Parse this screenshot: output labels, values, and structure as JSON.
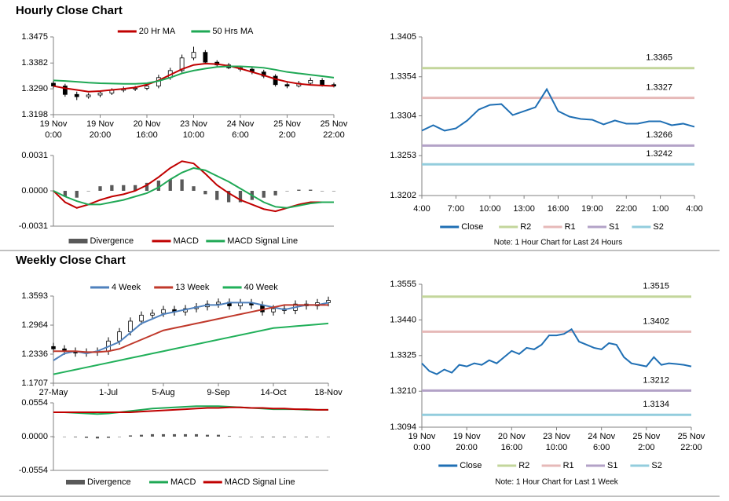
{
  "sections": [
    {
      "title": "Hourly Close Chart"
    },
    {
      "title": "Weekly Close Chart"
    }
  ],
  "chart_data": [
    {
      "type": "candlestick",
      "legend": "top",
      "xlim": [
        0,
        24
      ],
      "ylim": [
        1.3198,
        1.3475
      ],
      "yticks": [
        1.3198,
        {
          "value": 1.329,
          "label": "1.3290"
        },
        1.3382,
        1.3475
      ],
      "xticks": [
        {
          "value": 0,
          "label": "19 Nov\n0:00"
        },
        {
          "value": 4,
          "label": "19 Nov\n20:00"
        },
        {
          "value": 8,
          "label": "20 Nov\n16:00"
        },
        {
          "value": 12,
          "label": "23 Nov\n10:00"
        },
        {
          "value": 16,
          "label": "24 Nov\n6:00"
        },
        {
          "value": 20,
          "label": "25 Nov\n2:00"
        },
        {
          "value": 24,
          "label": "25 Nov\n22:00"
        }
      ],
      "candles": {
        "open": [
          1.331,
          1.33,
          1.327,
          1.3262,
          1.3268,
          1.3275,
          1.3285,
          1.329,
          1.3292,
          1.33,
          1.333,
          1.3355,
          1.34,
          1.342,
          1.3385,
          1.3375,
          1.3365,
          1.336,
          1.335,
          1.3335,
          1.3305,
          1.33,
          1.331,
          1.332,
          1.3305
        ],
        "high": [
          1.3318,
          1.3308,
          1.328,
          1.3275,
          1.3282,
          1.3292,
          1.3298,
          1.33,
          1.3308,
          1.334,
          1.3365,
          1.3412,
          1.344,
          1.3428,
          1.3392,
          1.3382,
          1.3372,
          1.3368,
          1.3358,
          1.3342,
          1.3312,
          1.3318,
          1.333,
          1.3328,
          1.3312
        ],
        "low": [
          1.3292,
          1.3262,
          1.325,
          1.3255,
          1.326,
          1.3268,
          1.3278,
          1.3282,
          1.3285,
          1.3292,
          1.3322,
          1.3348,
          1.3392,
          1.3378,
          1.3368,
          1.336,
          1.3352,
          1.3342,
          1.3328,
          1.3298,
          1.3292,
          1.3295,
          1.3302,
          1.3298,
          1.3295
        ],
        "close": [
          1.33,
          1.327,
          1.3262,
          1.3268,
          1.3275,
          1.3285,
          1.329,
          1.3292,
          1.33,
          1.333,
          1.3355,
          1.34,
          1.342,
          1.3385,
          1.3375,
          1.3365,
          1.336,
          1.335,
          1.3335,
          1.3305,
          1.33,
          1.331,
          1.332,
          1.3305,
          1.33
        ]
      },
      "series": [
        {
          "name": "20 Hr MA",
          "color": "#c00000",
          "values": [
            1.33,
            1.3292,
            1.3286,
            1.328,
            1.3282,
            1.3286,
            1.329,
            1.3295,
            1.3305,
            1.332,
            1.334,
            1.336,
            1.3375,
            1.338,
            1.3378,
            1.3372,
            1.3362,
            1.335,
            1.3338,
            1.3325,
            1.3315,
            1.3308,
            1.3304,
            1.3302,
            1.33
          ]
        },
        {
          "name": "50 Hrs MA",
          "color": "#1fa855",
          "values": [
            1.332,
            1.3318,
            1.3315,
            1.3312,
            1.331,
            1.3309,
            1.3308,
            1.3308,
            1.331,
            1.3318,
            1.333,
            1.3345,
            1.3355,
            1.3362,
            1.3368,
            1.337,
            1.337,
            1.3368,
            1.3365,
            1.3358,
            1.335,
            1.3345,
            1.334,
            1.3335,
            1.333
          ]
        }
      ]
    },
    {
      "type": "combo",
      "legend": "bottom",
      "xlim": [
        0,
        24
      ],
      "ylim": [
        -0.0031,
        0.0031
      ],
      "yticks": [
        -0.0031,
        {
          "value": 0,
          "label": "0.0000"
        },
        0.0031
      ],
      "series": [
        {
          "name": "Divergence",
          "type": "bar",
          "color": "#595959",
          "values": [
            0,
            -0.0005,
            -0.0006,
            0,
            0.0004,
            0.0005,
            0.0005,
            0.0005,
            0.0007,
            0.0009,
            0.001,
            0.001,
            0.0004,
            -0.0003,
            -0.0008,
            -0.001,
            -0.001,
            -0.0008,
            -0.0006,
            -0.0004,
            0,
            0.0001,
            0.0001,
            0,
            0
          ]
        },
        {
          "name": "MACD",
          "type": "line",
          "color": "#c00000",
          "values": [
            0,
            -0.001,
            -0.0015,
            -0.0012,
            -0.0008,
            -0.0005,
            -0.0003,
            0,
            0.0005,
            0.0012,
            0.002,
            0.0026,
            0.0024,
            0.0015,
            0.0005,
            -0.0002,
            -0.0008,
            -0.0012,
            -0.0016,
            -0.0018,
            -0.0015,
            -0.0012,
            -0.001,
            -0.001,
            -0.001
          ]
        },
        {
          "name": "MACD Signal Line",
          "type": "line",
          "color": "#1fa855",
          "values": [
            0,
            -0.0005,
            -0.0009,
            -0.0012,
            -0.0012,
            -0.001,
            -0.0008,
            -0.0005,
            -0.0002,
            0.0003,
            0.001,
            0.0016,
            0.002,
            0.0018,
            0.0013,
            0.0008,
            0.0002,
            -0.0004,
            -0.001,
            -0.0014,
            -0.0015,
            -0.0013,
            -0.0011,
            -0.001,
            -0.001
          ]
        }
      ]
    },
    {
      "type": "line",
      "legend": "bottom",
      "note": "Note: 1 Hour Chart for Last 24 Hours",
      "ylim": [
        1.3202,
        1.3405
      ],
      "yticks": [
        1.3202,
        1.3253,
        1.3304,
        1.3354,
        1.3405
      ],
      "categories": [
        "4:00",
        null,
        null,
        "7:00",
        null,
        null,
        "10:00",
        null,
        null,
        "13:00",
        null,
        null,
        "16:00",
        null,
        null,
        "19:00",
        null,
        null,
        "22:00",
        null,
        null,
        "1:00",
        null,
        null,
        "4:00"
      ],
      "series": [
        {
          "name": "Close",
          "color": "#1f6fb4",
          "values": [
            1.3285,
            1.3292,
            1.3285,
            1.3288,
            1.3298,
            1.3312,
            1.3318,
            1.3319,
            1.3305,
            1.331,
            1.3315,
            1.3338,
            1.331,
            1.3303,
            1.33,
            1.3299,
            1.3293,
            1.3298,
            1.3294,
            1.3294,
            1.3297,
            1.3297,
            1.3292,
            1.3294,
            1.329
          ]
        }
      ],
      "levels": [
        {
          "name": "R2",
          "value": 1.3365,
          "color": "#c3d69b"
        },
        {
          "name": "R1",
          "value": 1.3327,
          "color": "#e6b9b8"
        },
        {
          "name": "S1",
          "value": 1.3266,
          "color": "#b3a2c7"
        },
        {
          "name": "S2",
          "value": 1.3242,
          "color": "#93cddd"
        }
      ]
    },
    {
      "type": "candlestick",
      "legend": "top",
      "xlim": [
        0,
        25
      ],
      "ylim": [
        1.1707,
        1.3593
      ],
      "yticks": [
        1.1707,
        1.2336,
        1.2964,
        1.3593
      ],
      "xticks": [
        {
          "value": 0,
          "label": "27-May"
        },
        {
          "value": 5,
          "label": "1-Jul"
        },
        {
          "value": 10,
          "label": "5-Aug"
        },
        {
          "value": 15,
          "label": "9-Sep"
        },
        {
          "value": 20,
          "label": "14-Oct"
        },
        {
          "value": 25,
          "label": "18-Nov"
        }
      ],
      "candles": {
        "open": [
          1.25,
          1.245,
          1.24,
          1.236,
          1.238,
          1.24,
          1.262,
          1.282,
          1.305,
          1.318,
          1.322,
          1.33,
          1.325,
          1.332,
          1.336,
          1.342,
          1.346,
          1.338,
          1.345,
          1.34,
          1.325,
          1.332,
          1.328,
          1.342,
          1.338,
          1.345
        ],
        "high": [
          1.258,
          1.253,
          1.248,
          1.246,
          1.248,
          1.27,
          1.29,
          1.313,
          1.326,
          1.33,
          1.338,
          1.338,
          1.34,
          1.344,
          1.35,
          1.354,
          1.354,
          1.353,
          1.353,
          1.348,
          1.34,
          1.34,
          1.35,
          1.35,
          1.353,
          1.358
        ],
        "low": [
          1.237,
          1.232,
          1.228,
          1.228,
          1.23,
          1.232,
          1.254,
          1.274,
          1.297,
          1.31,
          1.314,
          1.317,
          1.317,
          1.324,
          1.328,
          1.334,
          1.33,
          1.33,
          1.332,
          1.317,
          1.317,
          1.32,
          1.32,
          1.33,
          1.33,
          1.337
        ],
        "close": [
          1.245,
          1.24,
          1.236,
          1.238,
          1.24,
          1.262,
          1.282,
          1.305,
          1.318,
          1.322,
          1.33,
          1.325,
          1.332,
          1.336,
          1.342,
          1.346,
          1.338,
          1.345,
          1.34,
          1.325,
          1.332,
          1.328,
          1.342,
          1.338,
          1.345,
          1.35
        ]
      },
      "series": [
        {
          "name": "4 Week",
          "color": "#4f81bd",
          "values": [
            1.22,
            1.235,
            1.24,
            1.235,
            1.24,
            1.25,
            1.26,
            1.28,
            1.3,
            1.31,
            1.32,
            1.325,
            1.33,
            1.335,
            1.34,
            1.34,
            1.345,
            1.345,
            1.345,
            1.34,
            1.335,
            1.33,
            1.335,
            1.34,
            1.34,
            1.345
          ]
        },
        {
          "name": "13 Week",
          "color": "#c0392b",
          "values": [
            1.24,
            1.24,
            1.24,
            1.238,
            1.238,
            1.24,
            1.245,
            1.255,
            1.265,
            1.275,
            1.285,
            1.29,
            1.295,
            1.3,
            1.305,
            1.31,
            1.315,
            1.32,
            1.325,
            1.33,
            1.335,
            1.34,
            1.34,
            1.34,
            1.34,
            1.34
          ]
        },
        {
          "name": "40 Week",
          "color": "#21b05a",
          "values": [
            1.19,
            1.195,
            1.2,
            1.205,
            1.21,
            1.215,
            1.22,
            1.225,
            1.23,
            1.235,
            1.24,
            1.245,
            1.25,
            1.255,
            1.26,
            1.265,
            1.27,
            1.275,
            1.28,
            1.285,
            1.29,
            1.292,
            1.294,
            1.296,
            1.298,
            1.3
          ]
        }
      ]
    },
    {
      "type": "combo",
      "legend": "bottom",
      "xlim": [
        0,
        25
      ],
      "ylim": [
        -0.0554,
        0.0554
      ],
      "yticks": [
        -0.0554,
        {
          "value": 0,
          "label": "0.0000"
        },
        0.0554
      ],
      "series": [
        {
          "name": "Divergence",
          "type": "bar",
          "color": "#595959",
          "values": [
            0,
            0,
            -0.001,
            -0.002,
            -0.003,
            -0.002,
            0,
            0.002,
            0.003,
            0.004,
            0.004,
            0.004,
            0.004,
            0.004,
            0.003,
            0.003,
            0.001,
            0,
            0,
            -0.001,
            -0.001,
            -0.001,
            0,
            -0.001,
            0,
            0
          ]
        },
        {
          "name": "MACD",
          "type": "line",
          "color": "#1fa855",
          "values": [
            0.04,
            0.04,
            0.039,
            0.038,
            0.037,
            0.038,
            0.04,
            0.042,
            0.044,
            0.046,
            0.047,
            0.048,
            0.049,
            0.05,
            0.05,
            0.05,
            0.049,
            0.048,
            0.047,
            0.046,
            0.045,
            0.045,
            0.045,
            0.044,
            0.044,
            0.044
          ]
        },
        {
          "name": "MACD Signal Line",
          "type": "line",
          "color": "#c00000",
          "values": [
            0.04,
            0.04,
            0.04,
            0.04,
            0.04,
            0.04,
            0.04,
            0.04,
            0.041,
            0.042,
            0.043,
            0.044,
            0.045,
            0.046,
            0.047,
            0.047,
            0.048,
            0.048,
            0.047,
            0.047,
            0.046,
            0.046,
            0.045,
            0.045,
            0.044,
            0.044
          ]
        }
      ]
    },
    {
      "type": "line",
      "legend": "bottom",
      "note": "Note: 1 Hour Chart for Last 1 Week",
      "xlim": [
        0,
        36
      ],
      "ylim": [
        1.3094,
        1.3555
      ],
      "yticks": [
        1.3094,
        {
          "value": 1.321,
          "label": "1.3210"
        },
        1.3325,
        {
          "value": 1.344,
          "label": "1.3440"
        },
        1.3555
      ],
      "xticks": [
        {
          "value": 0,
          "label": "19 Nov\n0:00"
        },
        {
          "value": 6,
          "label": "19 Nov\n20:00"
        },
        {
          "value": 12,
          "label": "20 Nov\n16:00"
        },
        {
          "value": 18,
          "label": "23 Nov\n10:00"
        },
        {
          "value": 24,
          "label": "24 Nov\n6:00"
        },
        {
          "value": 30,
          "label": "25 Nov\n2:00"
        },
        {
          "value": 36,
          "label": "25 Nov\n22:00"
        }
      ],
      "series": [
        {
          "name": "Close",
          "color": "#1f6fb4",
          "values": [
            1.33,
            1.3275,
            1.3265,
            1.328,
            1.327,
            1.3295,
            1.329,
            1.33,
            1.3295,
            1.331,
            1.33,
            1.332,
            1.334,
            1.333,
            1.335,
            1.3345,
            1.336,
            1.339,
            1.339,
            1.3395,
            1.341,
            1.337,
            1.336,
            1.335,
            1.3345,
            1.3365,
            1.336,
            1.332,
            1.33,
            1.3295,
            1.329,
            1.332,
            1.3295,
            1.33,
            1.3298,
            1.3295,
            1.329
          ]
        }
      ],
      "levels": [
        {
          "name": "R2",
          "value": 1.3515,
          "color": "#c3d69b"
        },
        {
          "name": "R1",
          "value": 1.3402,
          "color": "#e6b9b8"
        },
        {
          "name": "S1",
          "value": 1.3212,
          "color": "#b3a2c7"
        },
        {
          "name": "S2",
          "value": 1.3134,
          "color": "#93cddd"
        }
      ]
    }
  ]
}
